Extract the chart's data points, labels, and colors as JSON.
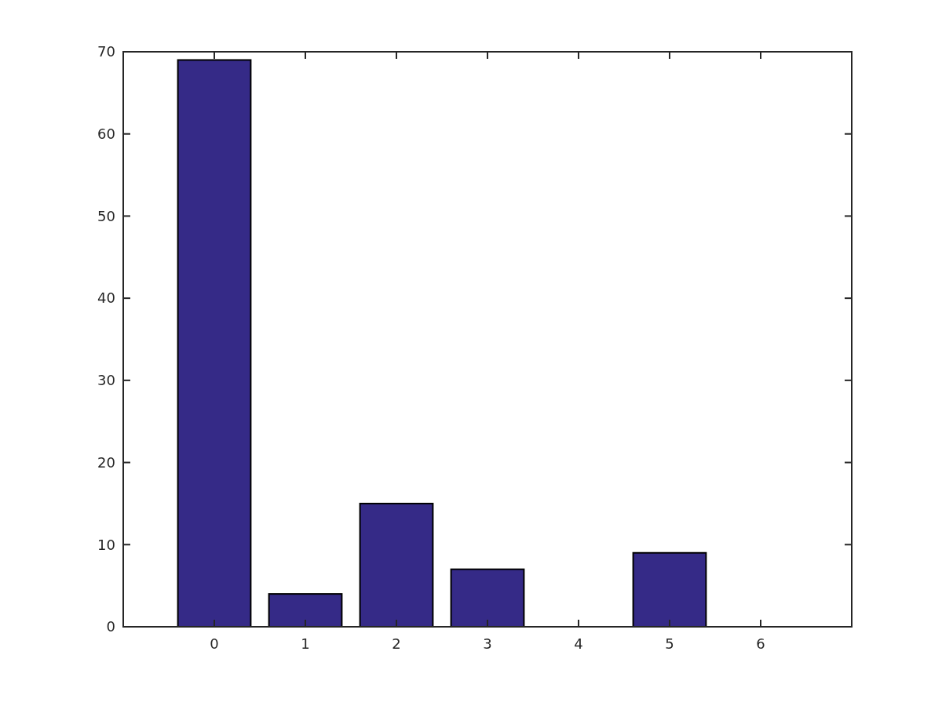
{
  "chart_data": {
    "type": "bar",
    "x": [
      0,
      1,
      2,
      3,
      4,
      5,
      6
    ],
    "values": [
      69,
      4,
      15,
      7,
      0,
      9,
      0
    ],
    "color": "#352a87",
    "xlim": [
      -1,
      7
    ],
    "xticks": [
      0,
      1,
      2,
      3,
      4,
      5,
      6
    ],
    "ylim": [
      0,
      70
    ],
    "yticks": [
      0,
      10,
      20,
      30,
      40,
      50,
      60,
      70
    ],
    "grid": false
  }
}
